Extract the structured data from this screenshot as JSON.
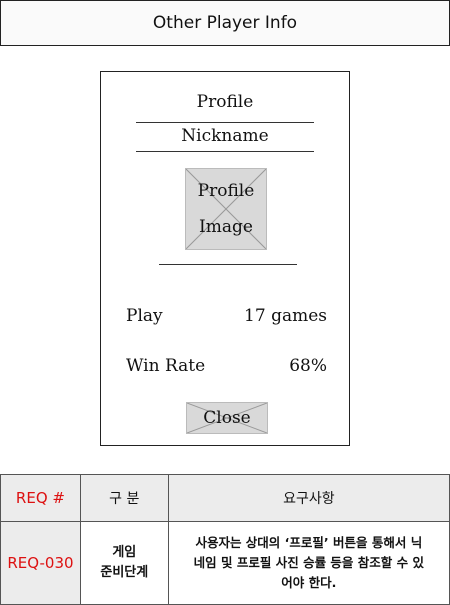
{
  "header": {
    "title": "Other Player Info"
  },
  "dialog": {
    "profile_title": "Profile",
    "nickname": "Nickname",
    "image_placeholder": {
      "line1": "Profile",
      "line2": "Image"
    },
    "stats": {
      "play_label": "Play",
      "play_value": "17 games",
      "winrate_label": "Win Rate",
      "winrate_value": "68%"
    },
    "close_label": "Close"
  },
  "requirements": {
    "headers": [
      "REQ #",
      "구 분",
      "요구사항"
    ],
    "rows": [
      {
        "id": "REQ-030",
        "category_line1": "게임",
        "category_line2": "준비단계",
        "desc_line1": "사용자는 상대의 ‘프로필’ 버튼을 통해서 닉",
        "desc_line2": "네임 및 프로필 사진 승률 등을 참조할 수 있",
        "desc_line3": "어야 한다."
      }
    ]
  },
  "colors": {
    "accent_red": "#dd1111",
    "placeholder_gray": "#d9d9d9"
  }
}
